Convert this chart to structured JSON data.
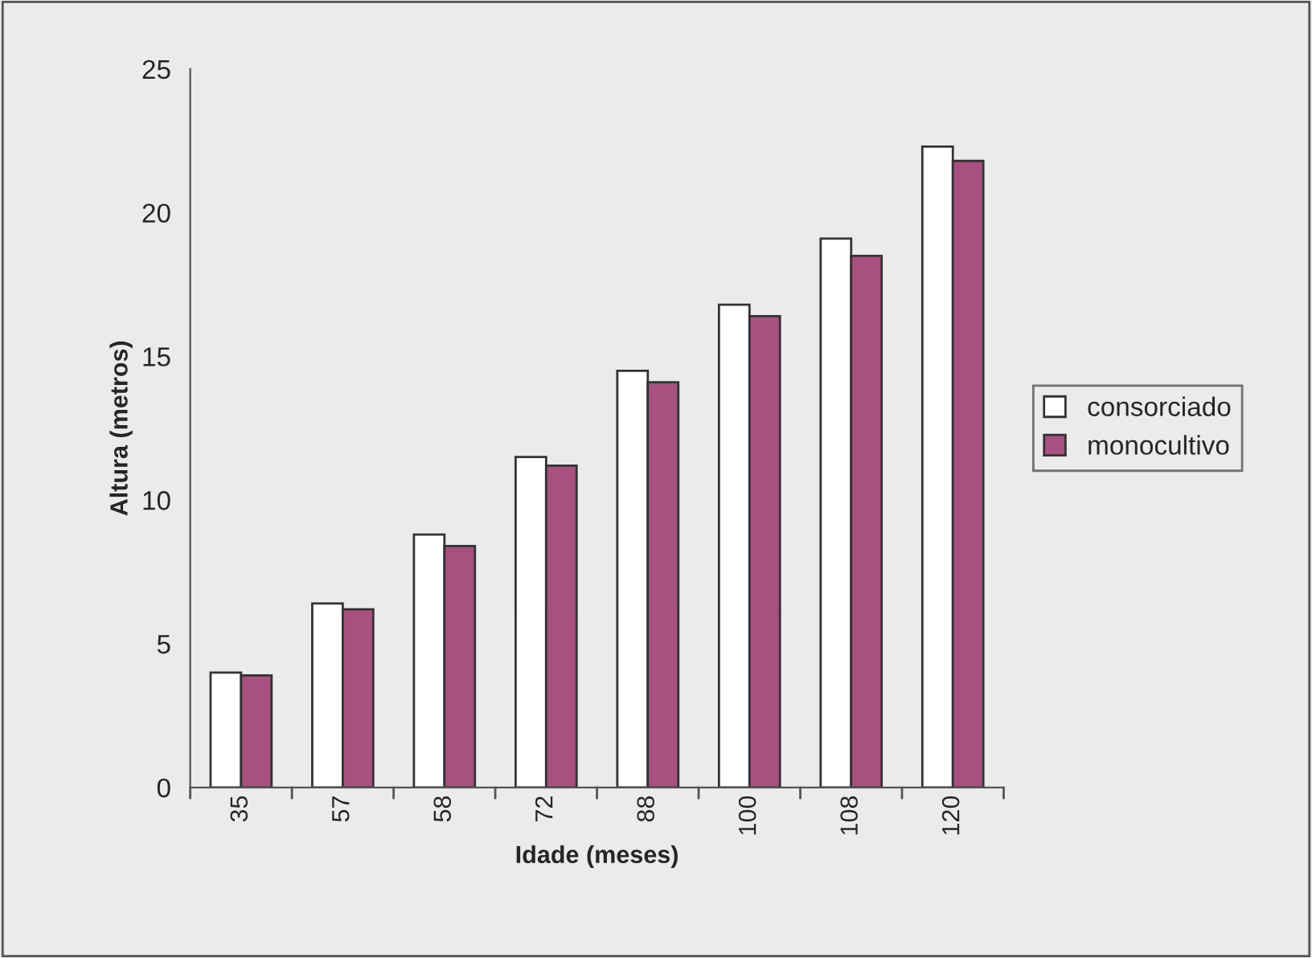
{
  "chart_data": {
    "type": "bar",
    "xlabel": "Idade (meses)",
    "ylabel": "Altura (metros)",
    "categories": [
      "35",
      "57",
      "58",
      "72",
      "88",
      "100",
      "108",
      "120"
    ],
    "series": [
      {
        "name": "consorciado",
        "color": "#ffffff",
        "values": [
          4.0,
          6.4,
          8.8,
          11.5,
          14.5,
          16.8,
          19.1,
          22.3
        ]
      },
      {
        "name": "monocultivo",
        "color": "#a8507f",
        "values": [
          3.9,
          6.2,
          8.4,
          11.2,
          14.1,
          16.4,
          18.5,
          21.8
        ]
      }
    ],
    "ylim": [
      0,
      25
    ],
    "yticks": [
      0,
      5,
      10,
      15,
      20,
      25
    ],
    "grid": false,
    "legend": "right"
  }
}
